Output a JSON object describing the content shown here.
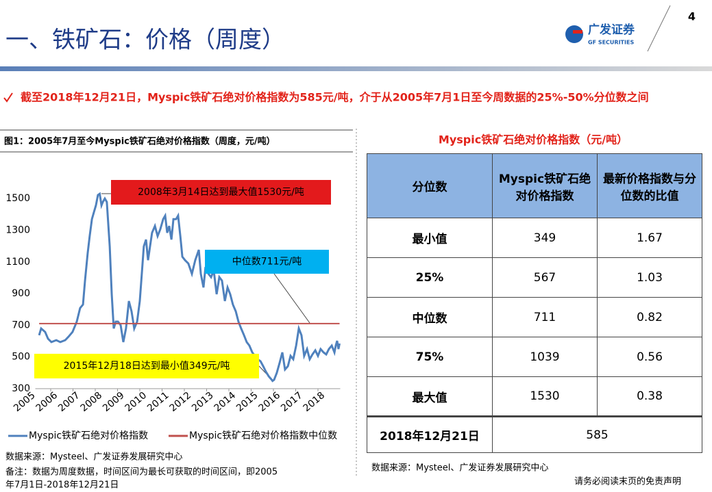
{
  "header": {
    "title": "一、铁矿石：价格（周度）",
    "page_number": "4",
    "logo_name": "广发证券",
    "logo_subtitle": "GF SECURITIES"
  },
  "summary": "截至2018年12月21日，Myspic铁矿石绝对价格指数为585元/吨，介于从2005年7月1日至今周数据的25%-50%分位数之间",
  "figure_caption": "图1：2005年7月至今Myspic铁矿石绝对价格指数（周度，元/吨）",
  "chart_data": {
    "type": "line",
    "series": [
      {
        "name": "Myspic铁矿石绝对价格指数",
        "color": "#4f81bd",
        "x": [
          2005.48,
          2005.57,
          2005.75,
          2005.88,
          2006.03,
          2006.25,
          2006.43,
          2006.65,
          2006.8,
          2006.98,
          2007.17,
          2007.32,
          2007.45,
          2007.54,
          2007.66,
          2007.75,
          2007.85,
          2007.94,
          2008.03,
          2008.12,
          2008.2,
          2008.28,
          2008.34,
          2008.43,
          2008.52,
          2008.65,
          2008.74,
          2008.83,
          2008.92,
          2009.02,
          2009.14,
          2009.26,
          2009.38,
          2009.51,
          2009.63,
          2009.75,
          2009.88,
          2010.0,
          2010.09,
          2010.18,
          2010.28,
          2010.37,
          2010.46,
          2010.55,
          2010.68,
          2010.8,
          2010.92,
          2011.05,
          2011.14,
          2011.23,
          2011.32,
          2011.42,
          2011.51,
          2011.63,
          2011.72,
          2011.82,
          2011.91,
          2012.03,
          2012.18,
          2012.34,
          2012.49,
          2012.65,
          2012.74,
          2012.86,
          2012.95,
          2013.08,
          2013.2,
          2013.32,
          2013.45,
          2013.57,
          2013.69,
          2013.82,
          2013.94,
          2014.06,
          2014.18,
          2014.31,
          2014.43,
          2014.55,
          2014.68,
          2014.8,
          2014.92,
          2015.05,
          2015.17,
          2015.29,
          2015.42,
          2015.54,
          2015.66,
          2015.79,
          2015.9,
          2015.96,
          2016.03,
          2016.15,
          2016.28,
          2016.4,
          2016.52,
          2016.65,
          2016.77,
          2016.89,
          2017.02,
          2017.14,
          2017.26,
          2017.38,
          2017.51,
          2017.63,
          2017.75,
          2017.88,
          2018.0,
          2018.12,
          2018.25,
          2018.37,
          2018.49,
          2018.62,
          2018.74,
          2018.8,
          2018.86,
          2018.92,
          2018.97
        ],
        "values": [
          637,
          680,
          658,
          615,
          594,
          606,
          594,
          606,
          628,
          658,
          723,
          809,
          831,
          982,
          1155,
          1263,
          1370,
          1414,
          1457,
          1522,
          1530,
          1457,
          1478,
          1500,
          1478,
          1198,
          896,
          680,
          723,
          723,
          701,
          594,
          680,
          853,
          788,
          680,
          723,
          853,
          1025,
          1198,
          1241,
          1111,
          1198,
          1284,
          1327,
          1263,
          1306,
          1370,
          1392,
          1284,
          1327,
          1241,
          1370,
          1370,
          1392,
          1263,
          1133,
          1111,
          1090,
          1025,
          1111,
          1176,
          1025,
          939,
          1068,
          1025,
          1004,
          1047,
          896,
          1004,
          982,
          853,
          939,
          896,
          831,
          788,
          723,
          680,
          637,
          594,
          572,
          529,
          507,
          486,
          473,
          442,
          408,
          378,
          360,
          349,
          356,
          399,
          464,
          529,
          421,
          442,
          507,
          486,
          572,
          680,
          637,
          507,
          550,
          486,
          516,
          542,
          507,
          550,
          529,
          516,
          550,
          572,
          529,
          572,
          602,
          550,
          585
        ]
      },
      {
        "name": "Myspic铁矿石绝对价格指数中位数",
        "color": "#c0504d",
        "x": [
          2005.48,
          2018.97
        ],
        "values": [
          711,
          711
        ]
      }
    ],
    "xlim": [
      2005,
      2019
    ],
    "xticks": [
      2005,
      2006,
      2007,
      2008,
      2009,
      2010,
      2011,
      2012,
      2013,
      2014,
      2015,
      2016,
      2017,
      2018
    ],
    "ylim": [
      300,
      1600
    ],
    "yticks": [
      300,
      500,
      700,
      900,
      1100,
      1300,
      1500
    ],
    "grid": false,
    "legend": "bottom",
    "annotations": [
      "2008年3月14日达到最大值1530元/吨",
      "中位数711元/吨",
      "2015年12月18日达到最小值349元/吨"
    ]
  },
  "chart_source": "数据来源：Mysteel、广发证券发展研究中心",
  "chart_note": [
    "备注：数据为周度数据，时间区间为最长可获取的时间区间，即2005",
    "年7月1日-2018年12月21日"
  ],
  "table": {
    "title": "Myspic铁矿石绝对价格指数（元/吨）",
    "header": [
      "分位数",
      "Myspic铁矿石绝对价格指数",
      "最新价格指数与分位数的比值"
    ],
    "rows": [
      [
        "最小值",
        349,
        1.67
      ],
      [
        "25%",
        567,
        1.03
      ],
      [
        "中位数",
        711,
        0.82
      ],
      [
        "75%",
        1039,
        0.56
      ],
      [
        "最大值",
        1530,
        0.38
      ]
    ],
    "footer_row": [
      "2018年12月21日",
      585
    ]
  },
  "table_source": "数据来源：Mysteel、广发证券发展研究中心",
  "disclaimer": "请务必阅读末页的免责声明"
}
